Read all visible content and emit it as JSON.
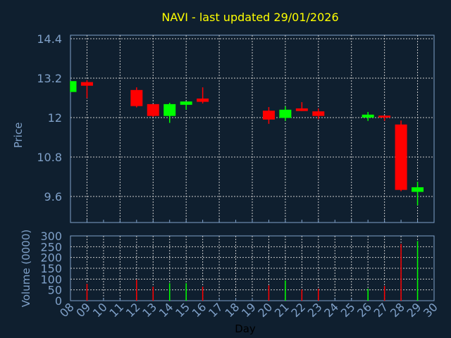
{
  "chart_data": [
    {
      "type": "candlestick",
      "title": "NAVI - last updated 29/01/2026",
      "xlabel": "",
      "ylabel": "Price",
      "ylim": [
        9.6,
        14.4
      ],
      "yticks": [
        "9.6",
        "10.8",
        "12",
        "13.2",
        "14.4"
      ],
      "grid": true,
      "colors": {
        "up": "#00ff00",
        "down": "#ff0000",
        "title": "#ffff00",
        "axis": "#7fa0c8",
        "grid": "#c8c8c8",
        "background": "#0f1f2f"
      },
      "candles": [
        {
          "day": "08",
          "open": 12.78,
          "high": 13.11,
          "low": 12.78,
          "close": 13.11
        },
        {
          "day": "09",
          "open": 13.08,
          "high": 13.14,
          "low": 12.59,
          "close": 12.97
        },
        {
          "day": "12",
          "open": 12.84,
          "high": 12.92,
          "low": 12.31,
          "close": 12.35
        },
        {
          "day": "13",
          "open": 12.41,
          "high": 12.41,
          "low": 12.02,
          "close": 12.05
        },
        {
          "day": "14",
          "open": 12.05,
          "high": 12.45,
          "low": 11.84,
          "close": 12.41
        },
        {
          "day": "15",
          "open": 12.39,
          "high": 12.49,
          "low": 12.24,
          "close": 12.49
        },
        {
          "day": "16",
          "open": 12.58,
          "high": 12.92,
          "low": 12.43,
          "close": 12.48
        },
        {
          "day": "20",
          "open": 12.21,
          "high": 12.32,
          "low": 11.81,
          "close": 11.94
        },
        {
          "day": "21",
          "open": 11.99,
          "high": 12.34,
          "low": 11.9,
          "close": 12.24
        },
        {
          "day": "22",
          "open": 12.28,
          "high": 12.47,
          "low": 12.2,
          "close": 12.2
        },
        {
          "day": "23",
          "open": 12.19,
          "high": 12.28,
          "low": 11.95,
          "close": 12.05
        },
        {
          "day": "26",
          "open": 12.0,
          "high": 12.17,
          "low": 11.9,
          "close": 12.09
        },
        {
          "day": "27",
          "open": 12.06,
          "high": 12.06,
          "low": 11.9,
          "close": 12.0
        },
        {
          "day": "28",
          "open": 11.79,
          "high": 11.91,
          "low": 9.76,
          "close": 9.8
        },
        {
          "day": "29",
          "open": 9.74,
          "high": 10.05,
          "low": 9.33,
          "close": 9.88
        }
      ]
    },
    {
      "type": "bar",
      "xlabel": "Day",
      "ylabel": "Volume (0000)",
      "ylim": [
        0,
        300
      ],
      "yticks": [
        "0",
        "50",
        "100",
        "150",
        "200",
        "250",
        "300"
      ],
      "xticks": [
        "08",
        "09",
        "10",
        "11",
        "12",
        "13",
        "14",
        "15",
        "16",
        "17",
        "18",
        "19",
        "20",
        "21",
        "22",
        "23",
        "24",
        "25",
        "26",
        "27",
        "28",
        "29",
        "30"
      ],
      "grid": true,
      "bars": [
        {
          "day": "09",
          "value": 78,
          "dir": "down"
        },
        {
          "day": "12",
          "value": 97,
          "dir": "down"
        },
        {
          "day": "13",
          "value": 65,
          "dir": "down"
        },
        {
          "day": "14",
          "value": 81,
          "dir": "up"
        },
        {
          "day": "15",
          "value": 81,
          "dir": "up"
        },
        {
          "day": "16",
          "value": 65,
          "dir": "down"
        },
        {
          "day": "20",
          "value": 71,
          "dir": "down"
        },
        {
          "day": "21",
          "value": 94,
          "dir": "up"
        },
        {
          "day": "22",
          "value": 52,
          "dir": "down"
        },
        {
          "day": "23",
          "value": 55,
          "dir": "down"
        },
        {
          "day": "26",
          "value": 55,
          "dir": "up"
        },
        {
          "day": "27",
          "value": 68,
          "dir": "down"
        },
        {
          "day": "28",
          "value": 263,
          "dir": "down"
        },
        {
          "day": "29",
          "value": 276,
          "dir": "up"
        }
      ]
    }
  ]
}
